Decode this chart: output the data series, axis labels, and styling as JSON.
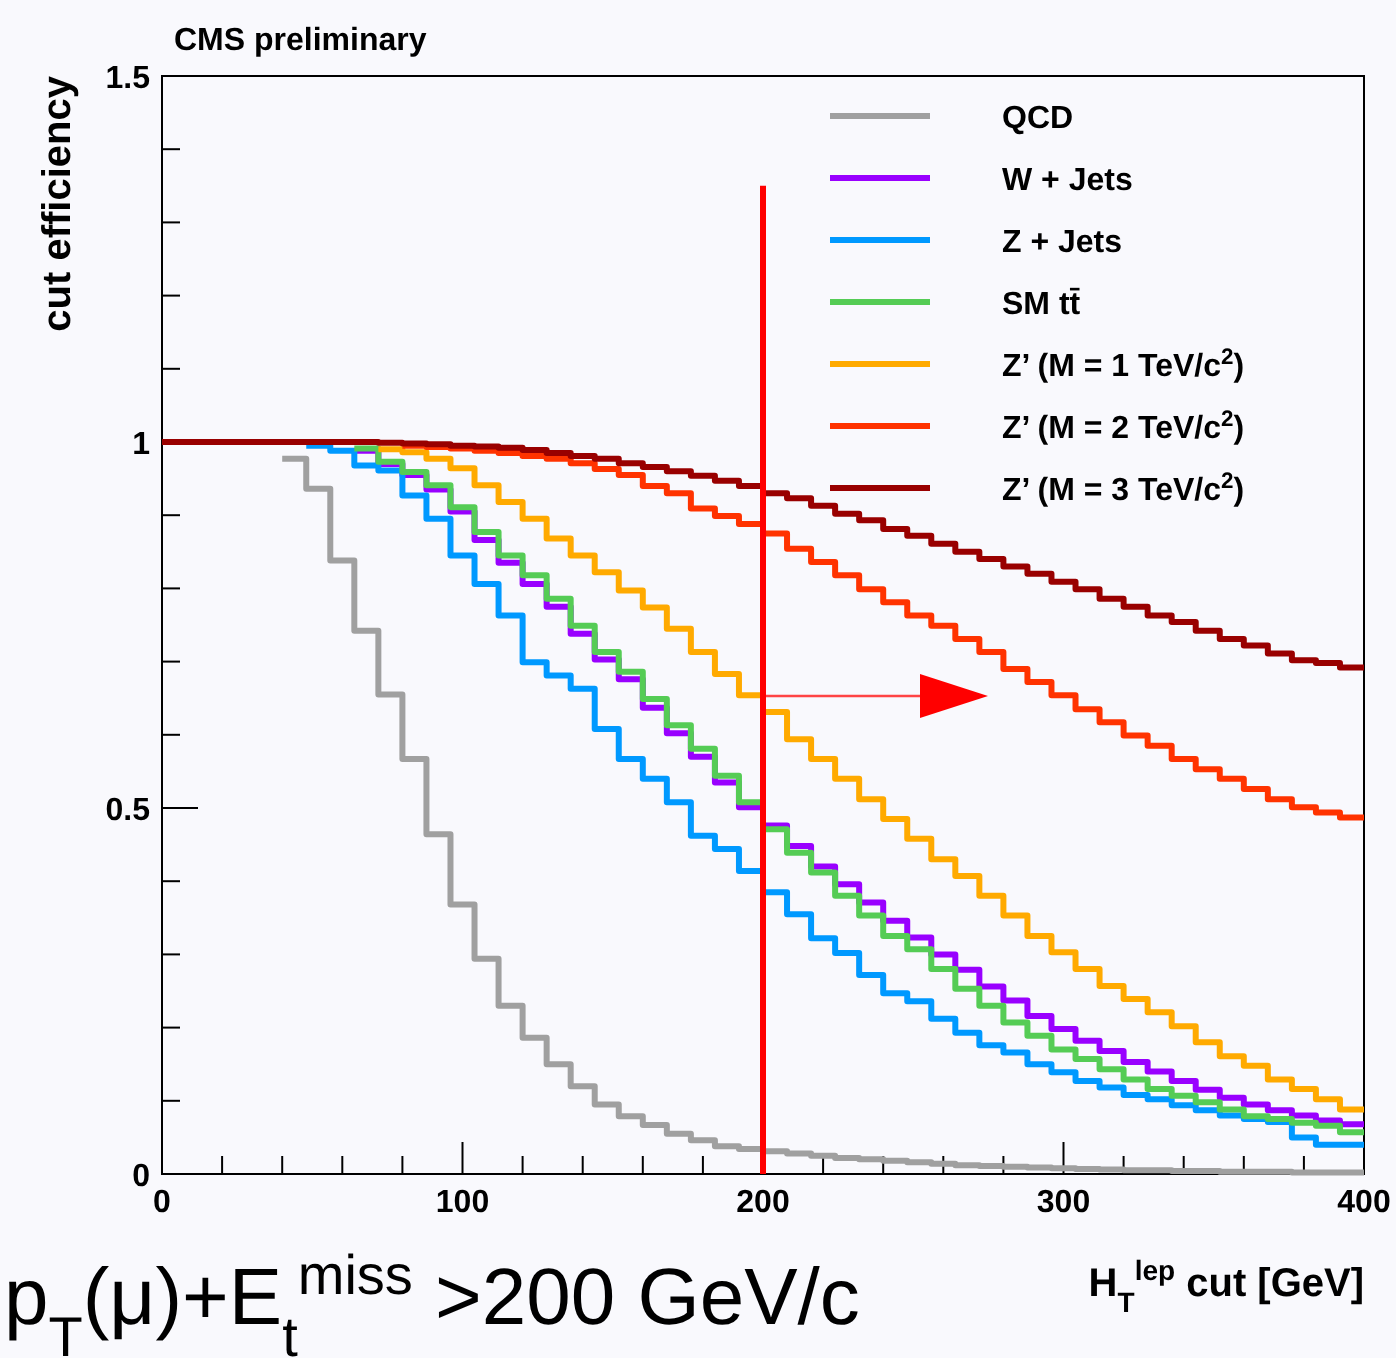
{
  "chart_data": {
    "type": "step",
    "title": "CMS preliminary",
    "xlabel": "H$_{T}$$^{lep}$ cut [GeV]",
    "ylabel": "cut efficiency",
    "x": [
      0,
      8,
      16,
      24,
      32,
      40,
      48,
      56,
      64,
      72,
      80,
      88,
      96,
      104,
      112,
      120,
      128,
      136,
      144,
      152,
      160,
      168,
      176,
      184,
      192,
      200,
      208,
      216,
      224,
      232,
      240,
      248,
      256,
      264,
      272,
      280,
      288,
      296,
      304,
      312,
      320,
      328,
      336,
      344,
      352,
      360,
      368,
      376,
      384,
      392,
      400
    ],
    "xlim": [
      0,
      400
    ],
    "ylim": [
      0,
      1.5
    ],
    "xticks": [
      0,
      {
        "value": 20,
        "label": null
      },
      {
        "value": 40,
        "label": null
      },
      {
        "value": 60,
        "label": null
      },
      {
        "value": 80,
        "label": null
      },
      100,
      {
        "value": 120,
        "label": null
      },
      {
        "value": 140,
        "label": null
      },
      {
        "value": 160,
        "label": null
      },
      {
        "value": 180,
        "label": null
      },
      200,
      {
        "value": 220,
        "label": null
      },
      {
        "value": 240,
        "label": null
      },
      {
        "value": 260,
        "label": null
      },
      {
        "value": 280,
        "label": null
      },
      300,
      {
        "value": 320,
        "label": null
      },
      {
        "value": 340,
        "label": null
      },
      {
        "value": 360,
        "label": null
      },
      {
        "value": 380,
        "label": null
      },
      400
    ],
    "yticks": [
      0,
      {
        "value": 0.1,
        "label": null
      },
      {
        "value": 0.2,
        "label": null
      },
      {
        "value": 0.3,
        "label": null
      },
      {
        "value": 0.4,
        "label": null
      },
      0.5,
      {
        "value": 0.6,
        "label": null
      },
      {
        "value": 0.7,
        "label": null
      },
      {
        "value": 0.8,
        "label": null
      },
      {
        "value": 0.9,
        "label": null
      },
      1,
      {
        "value": 1.1,
        "label": null
      },
      {
        "value": 1.2,
        "label": null
      },
      {
        "value": 1.3,
        "label": null
      },
      {
        "value": 1.4,
        "label": null
      },
      1.5
    ],
    "legend": "top right",
    "series": [
      {
        "name": "QCD",
        "color": "#a0a0a0",
        "values": [
          null,
          null,
          null,
          null,
          null,
          0.977,
          0.936,
          0.838,
          0.742,
          0.655,
          0.567,
          0.464,
          0.368,
          0.294,
          0.23,
          0.186,
          0.15,
          0.12,
          0.095,
          0.079,
          0.067,
          0.055,
          0.046,
          0.038,
          0.034,
          0.031,
          0.028,
          0.025,
          0.022,
          0.02,
          0.018,
          0.016,
          0.014,
          0.012,
          0.011,
          0.01,
          0.009,
          0.008,
          0.007,
          0.006,
          0.005,
          0.005,
          0.004,
          0.004,
          0.003,
          0.003,
          0.003,
          0.002,
          0.002,
          0.002,
          0.002
        ]
      },
      {
        "name": "W + Jets",
        "color": "#9900ff",
        "values": [
          null,
          null,
          null,
          null,
          null,
          null,
          null,
          null,
          0.988,
          0.97,
          0.955,
          0.935,
          0.905,
          0.866,
          0.835,
          0.806,
          0.775,
          0.738,
          0.703,
          0.676,
          0.637,
          0.602,
          0.57,
          0.535,
          0.501,
          0.476,
          0.448,
          0.42,
          0.396,
          0.371,
          0.346,
          0.323,
          0.3,
          0.279,
          0.256,
          0.237,
          0.216,
          0.198,
          0.182,
          0.168,
          0.153,
          0.14,
          0.127,
          0.115,
          0.104,
          0.095,
          0.087,
          0.08,
          0.073,
          0.068,
          0.068
        ]
      },
      {
        "name": "Z + Jets",
        "color": "#0099ff",
        "values": [
          null,
          null,
          null,
          null,
          null,
          null,
          0.995,
          0.988,
          0.968,
          0.961,
          0.927,
          0.895,
          0.845,
          0.806,
          0.763,
          0.699,
          0.681,
          0.663,
          0.608,
          0.567,
          0.54,
          0.508,
          0.462,
          0.444,
          0.414,
          0.385,
          0.355,
          0.322,
          0.302,
          0.272,
          0.247,
          0.236,
          0.212,
          0.193,
          0.176,
          0.166,
          0.15,
          0.139,
          0.127,
          0.118,
          0.108,
          0.102,
          0.094,
          0.087,
          0.08,
          0.075,
          0.071,
          0.05,
          0.04,
          0.04,
          0.04
        ]
      },
      {
        "name": "SM tt̄",
        "color": "#55cc55",
        "values": [
          null,
          null,
          null,
          null,
          null,
          null,
          null,
          null,
          0.991,
          0.973,
          0.959,
          0.941,
          0.911,
          0.877,
          0.845,
          0.818,
          0.786,
          0.749,
          0.713,
          0.686,
          0.649,
          0.613,
          0.581,
          0.544,
          0.508,
          0.471,
          0.439,
          0.412,
          0.38,
          0.353,
          0.325,
          0.307,
          0.28,
          0.253,
          0.23,
          0.207,
          0.189,
          0.17,
          0.157,
          0.143,
          0.129,
          0.116,
          0.107,
          0.098,
          0.088,
          0.079,
          0.075,
          0.07,
          0.066,
          0.057,
          0.057
        ]
      },
      {
        "name": "Z’ (M = 1 TeV/c$^{2}$)",
        "color": "#ffaa00",
        "values": [
          null,
          null,
          null,
          null,
          null,
          null,
          null,
          null,
          null,
          0.99,
          0.986,
          0.977,
          0.964,
          0.941,
          0.918,
          0.895,
          0.868,
          0.845,
          0.822,
          0.797,
          0.774,
          0.745,
          0.713,
          0.683,
          0.654,
          0.631,
          0.594,
          0.567,
          0.54,
          0.512,
          0.485,
          0.458,
          0.43,
          0.407,
          0.38,
          0.353,
          0.325,
          0.303,
          0.28,
          0.257,
          0.239,
          0.221,
          0.202,
          0.18,
          0.161,
          0.148,
          0.129,
          0.116,
          0.102,
          0.088,
          0.088
        ]
      },
      {
        "name": "Z’ (M = 2 TeV/c$^{2}$)",
        "color": "#ff3300",
        "values": [
          null,
          null,
          null,
          null,
          null,
          null,
          null,
          null,
          null,
          null,
          0.995,
          0.993,
          0.991,
          0.988,
          0.985,
          0.981,
          0.977,
          0.971,
          0.963,
          0.955,
          0.94,
          0.93,
          0.909,
          0.899,
          0.888,
          0.875,
          0.854,
          0.836,
          0.818,
          0.799,
          0.781,
          0.763,
          0.749,
          0.731,
          0.713,
          0.69,
          0.672,
          0.654,
          0.635,
          0.617,
          0.599,
          0.585,
          0.567,
          0.553,
          0.54,
          0.526,
          0.512,
          0.501,
          0.494,
          0.487,
          0.487
        ]
      },
      {
        "name": "Z’ (M = 3 TeV/c$^{2}$)",
        "color": "#990000",
        "values": [
          1,
          1,
          1,
          1,
          1,
          1,
          1,
          1,
          1,
          0.999,
          0.998,
          0.997,
          0.995,
          0.994,
          0.992,
          0.989,
          0.985,
          0.981,
          0.977,
          0.971,
          0.966,
          0.96,
          0.954,
          0.947,
          0.94,
          0.93,
          0.923,
          0.913,
          0.902,
          0.893,
          0.881,
          0.872,
          0.861,
          0.85,
          0.84,
          0.83,
          0.82,
          0.809,
          0.799,
          0.786,
          0.775,
          0.763,
          0.754,
          0.742,
          0.731,
          0.722,
          0.711,
          0.702,
          0.698,
          0.692,
          0.692
        ]
      }
    ],
    "ref_lines": [
      {
        "axis": "x",
        "value": 200,
        "color": "#ff0000"
      }
    ],
    "annotations": [
      "p$_{T}$(μ)+E$_{t}$$^{miss}$ >200 GeV/c"
    ]
  }
}
